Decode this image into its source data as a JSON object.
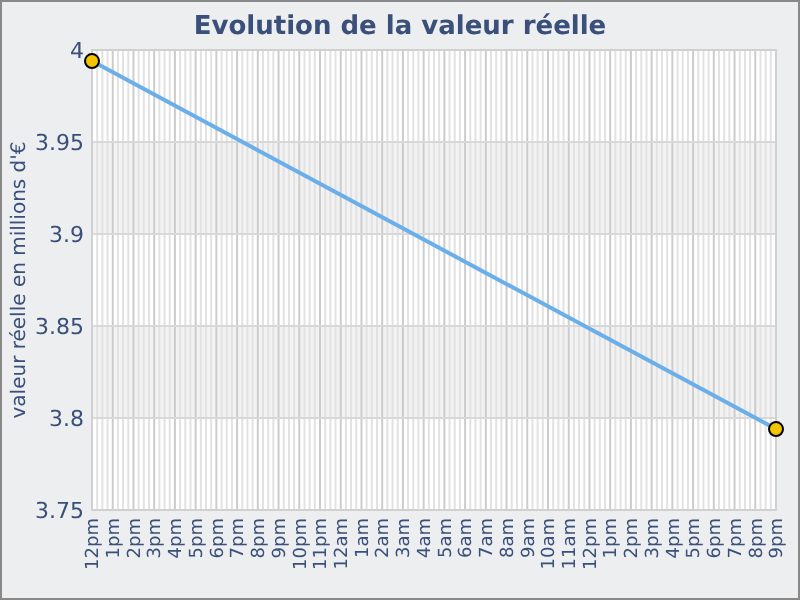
{
  "chart_data": {
    "type": "line",
    "title": "Evolution de la valeur réelle",
    "ylabel": "valeur réelle en millions d'€",
    "categories": [
      "12pm",
      "1pm",
      "2pm",
      "3pm",
      "4pm",
      "5pm",
      "6pm",
      "7pm",
      "8pm",
      "9pm",
      "10pm",
      "11pm",
      "12am",
      "1am",
      "2am",
      "3am",
      "4am",
      "5am",
      "6am",
      "7am",
      "8am",
      "9am",
      "10am",
      "11am",
      "12pm",
      "1pm",
      "2pm",
      "3pm",
      "4pm",
      "5pm",
      "6pm",
      "7pm",
      "8pm",
      "9pm"
    ],
    "series": [
      {
        "color": "#6aaeea",
        "values": [
          3.994,
          null,
          null,
          null,
          null,
          null,
          null,
          null,
          null,
          null,
          null,
          null,
          null,
          null,
          null,
          null,
          null,
          null,
          null,
          null,
          null,
          null,
          null,
          null,
          null,
          null,
          null,
          null,
          null,
          null,
          null,
          null,
          null,
          3.794
        ]
      }
    ],
    "ylim": [
      3.75,
      4
    ],
    "yticks": [
      3.75,
      3.8,
      3.85,
      3.9,
      3.95,
      4
    ],
    "grid": true,
    "marker": "circle",
    "line_style": "solid"
  }
}
